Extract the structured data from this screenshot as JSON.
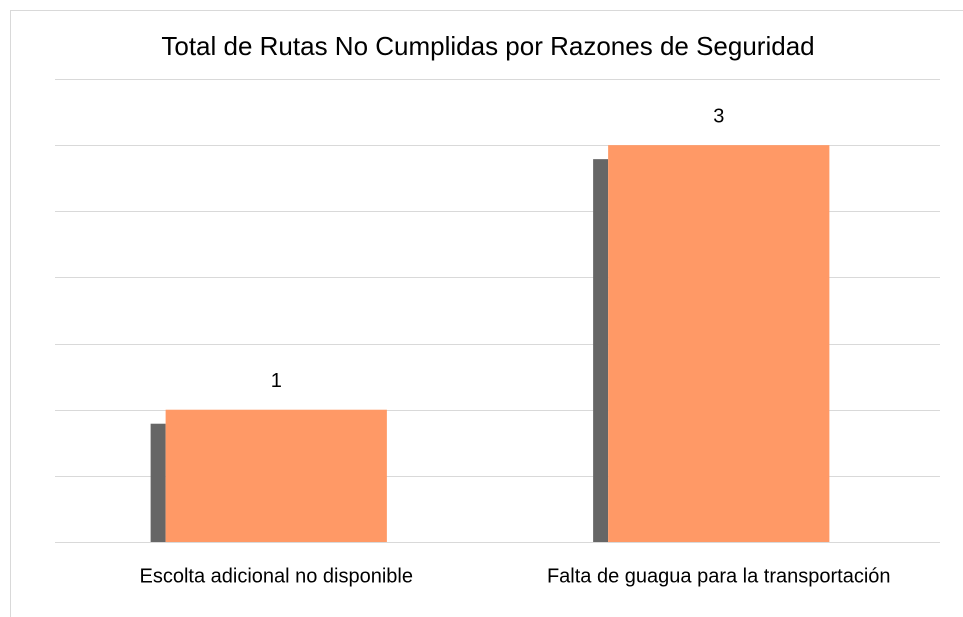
{
  "chart_data": {
    "type": "bar",
    "title": "Total de Rutas No Cumplidas por Razones de Seguridad",
    "categories": [
      "Escolta adicional no disponible",
      "Falta de guagua para la transportación"
    ],
    "values": [
      1,
      3
    ],
    "color": "#ff9966",
    "shadow_color": "#666666",
    "ylim": [
      0,
      3.5
    ],
    "yticks": [
      0,
      0.5,
      1,
      1.5,
      2,
      2.5,
      3,
      3.5
    ],
    "grid": true
  }
}
